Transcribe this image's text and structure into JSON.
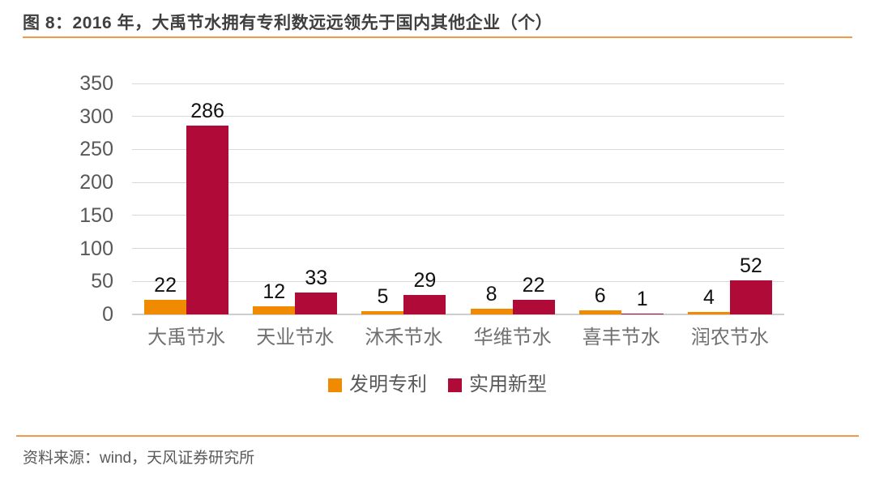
{
  "page": {
    "title": "图 8：2016 年，大禹节水拥有专利数远远领先于国内其他企业（个）",
    "source": "资料来源：wind，天风证券研究所"
  },
  "colors": {
    "accent_orange": "#F08A00",
    "accent_crimson": "#B00A38",
    "rule_orange": "#F2994A",
    "grid": "#D9D9D9",
    "axis_text": "#595959",
    "category_text": "#707070",
    "data_label": "#111111",
    "title_text": "#3F3F3F",
    "source_text": "#595959"
  },
  "chart_data": {
    "type": "bar",
    "title": "图 8：2016 年，大禹节水拥有专利数远远领先于国内其他企业（个）",
    "categories": [
      "大禹节水",
      "天业节水",
      "沐禾节水",
      "华维节水",
      "喜丰节水",
      "润农节水"
    ],
    "series": [
      {
        "name": "发明专利",
        "color": "#F08A00",
        "values": [
          22,
          12,
          5,
          8,
          6,
          4
        ]
      },
      {
        "name": "实用新型",
        "color": "#B00A38",
        "values": [
          286,
          33,
          29,
          22,
          1,
          52
        ]
      }
    ],
    "xlabel": "",
    "ylabel": "",
    "ylim": [
      0,
      350
    ],
    "yticks": [
      0,
      50,
      100,
      150,
      200,
      250,
      300,
      350
    ],
    "grid": true,
    "legend_position": "bottom",
    "data_labels": true
  }
}
